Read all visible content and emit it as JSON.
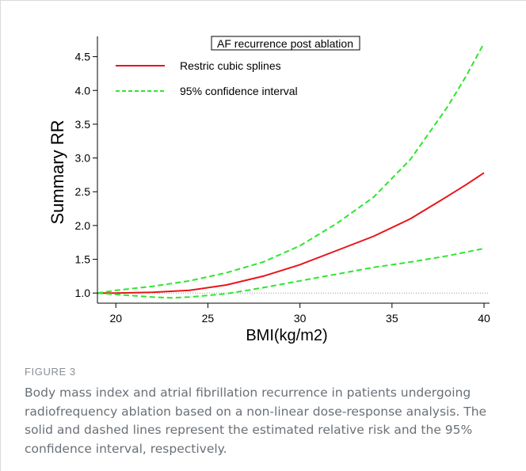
{
  "figure": {
    "label": "FIGURE 3",
    "caption": "Body mass index and atrial fibrillation recurrence in patients undergoing radiofrequency ablation based on a non-linear dose-response analysis. The solid and dashed lines represent the estimated relative risk and the 95% confidence interval, respectively."
  },
  "colors": {
    "spline": "#e8141a",
    "ci": "#2ee62e",
    "reference": "#9a9a9a",
    "axis": "#000000"
  },
  "chart_data": {
    "type": "line",
    "title": "",
    "xlabel": "BMI(kg/m2)",
    "ylabel": "Summary RR",
    "xlim": [
      19,
      40.3
    ],
    "ylim": [
      0.85,
      4.8
    ],
    "xticks": [
      20,
      25,
      30,
      35,
      40
    ],
    "yticks": [
      1.0,
      1.5,
      2.0,
      2.5,
      3.0,
      3.5,
      4.0,
      4.5
    ],
    "ytick_labels": [
      "1.0",
      "1.5",
      "2.0",
      "2.5",
      "3.0",
      "3.5",
      "4.0",
      "4.5"
    ],
    "grid": false,
    "reference_line": 1.0,
    "legend": {
      "title": "AF recurrence post ablation",
      "placement": "top",
      "entries": [
        {
          "label": "Restric cubic splines",
          "series": "spline",
          "style": "solid"
        },
        {
          "label": "95% confidence interval",
          "series": "ci",
          "style": "dashed"
        }
      ]
    },
    "series": [
      {
        "name": "Restric cubic splines",
        "style": "solid",
        "x": [
          19.0,
          20.0,
          22.0,
          24.0,
          26.0,
          28.0,
          30.0,
          32.0,
          34.0,
          36.0,
          38.0,
          39.0,
          40.0
        ],
        "y": [
          1.0,
          1.0,
          1.01,
          1.04,
          1.12,
          1.25,
          1.42,
          1.63,
          1.84,
          2.1,
          2.43,
          2.6,
          2.78
        ]
      },
      {
        "name": "95% confidence interval",
        "style": "dashed",
        "x": [
          19.0,
          20.0,
          22.0,
          24.0,
          26.0,
          28.0,
          30.0,
          32.0,
          34.0,
          36.0,
          38.0,
          39.0,
          40.0
        ],
        "y": [
          1.0,
          1.04,
          1.1,
          1.18,
          1.3,
          1.46,
          1.7,
          2.03,
          2.42,
          2.98,
          3.75,
          4.2,
          4.7
        ]
      },
      {
        "name": "95% confidence interval",
        "style": "dashed",
        "x": [
          19.0,
          20.0,
          21.0,
          22.0,
          23.0,
          24.0,
          26.0,
          28.0,
          30.0,
          32.0,
          34.0,
          36.0,
          38.0,
          40.0
        ],
        "y": [
          1.0,
          0.98,
          0.96,
          0.94,
          0.93,
          0.94,
          0.99,
          1.08,
          1.18,
          1.28,
          1.38,
          1.46,
          1.55,
          1.66
        ]
      }
    ]
  }
}
